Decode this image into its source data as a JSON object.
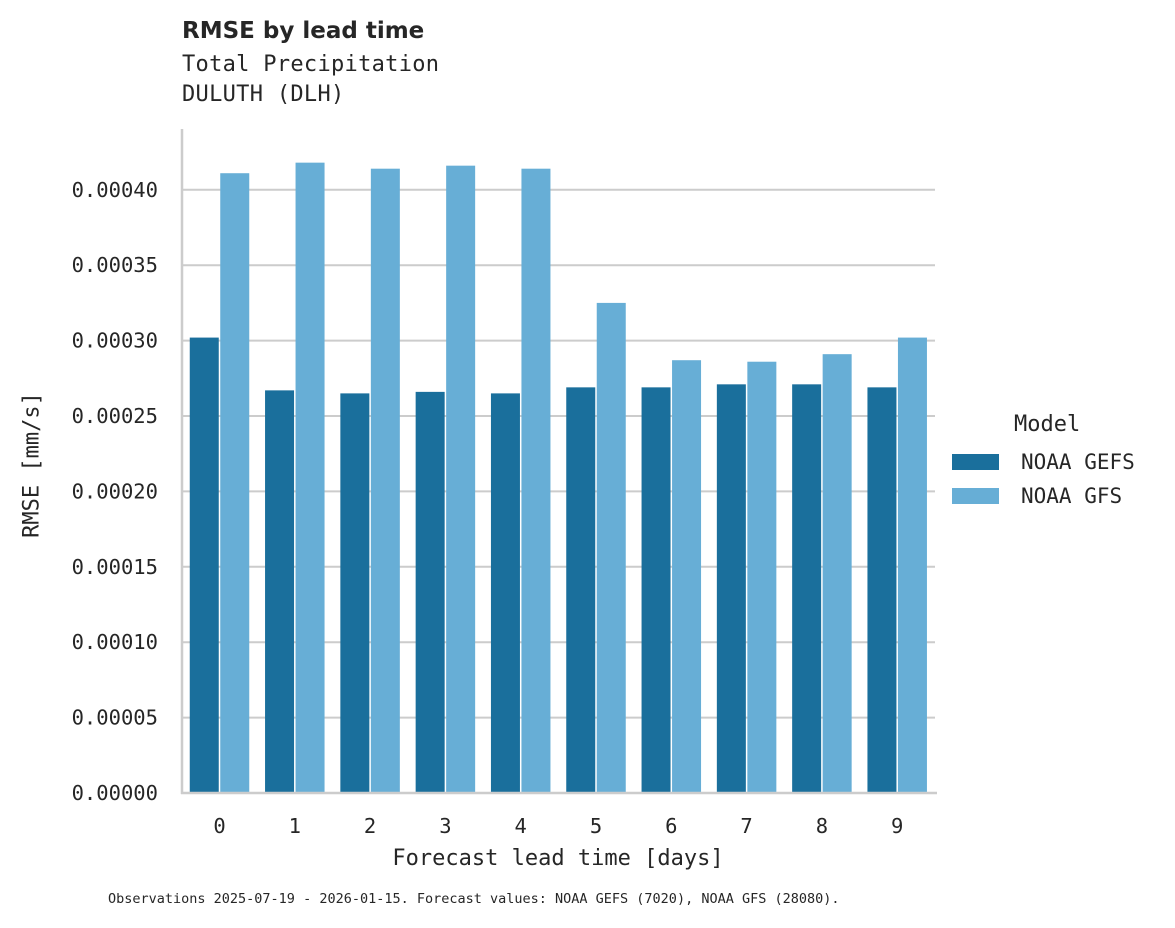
{
  "header": {
    "title": "RMSE by lead time",
    "subtitle_line1": "Total Precipitation",
    "subtitle_line2": "DULUTH (DLH)"
  },
  "axes": {
    "xlabel": "Forecast lead time [days]",
    "ylabel": "RMSE [mm/s]"
  },
  "legend": {
    "title": "Model",
    "items": [
      {
        "label": "NOAA GEFS",
        "color": "#1a6f9c"
      },
      {
        "label": "NOAA GFS",
        "color": "#67aed6"
      }
    ]
  },
  "footer": {
    "note": "Observations 2025-07-19 - 2026-01-15. Forecast values: NOAA GEFS (7020), NOAA GFS (28080)."
  },
  "chart_data": {
    "type": "bar",
    "title": "RMSE by lead time",
    "subtitle": "Total Precipitation / DULUTH (DLH)",
    "xlabel": "Forecast lead time [days]",
    "ylabel": "RMSE [mm/s]",
    "categories": [
      "0",
      "1",
      "2",
      "3",
      "4",
      "5",
      "6",
      "7",
      "8",
      "9"
    ],
    "series": [
      {
        "name": "NOAA GEFS",
        "color": "#1a6f9c",
        "values": [
          0.000302,
          0.000267,
          0.000265,
          0.000266,
          0.000265,
          0.000269,
          0.000269,
          0.000271,
          0.000271,
          0.000269
        ]
      },
      {
        "name": "NOAA GFS",
        "color": "#67aed6",
        "values": [
          0.000411,
          0.000418,
          0.000414,
          0.000416,
          0.000414,
          0.000325,
          0.000287,
          0.000286,
          0.000291,
          0.000302
        ]
      }
    ],
    "yticks": [
      "0.00000",
      "0.00005",
      "0.00010",
      "0.00015",
      "0.00020",
      "0.00025",
      "0.00030",
      "0.00035",
      "0.00040"
    ],
    "ylim": [
      0,
      0.00044
    ],
    "grid": "horizontal",
    "legend_position": "right",
    "legend_title": "Model"
  }
}
